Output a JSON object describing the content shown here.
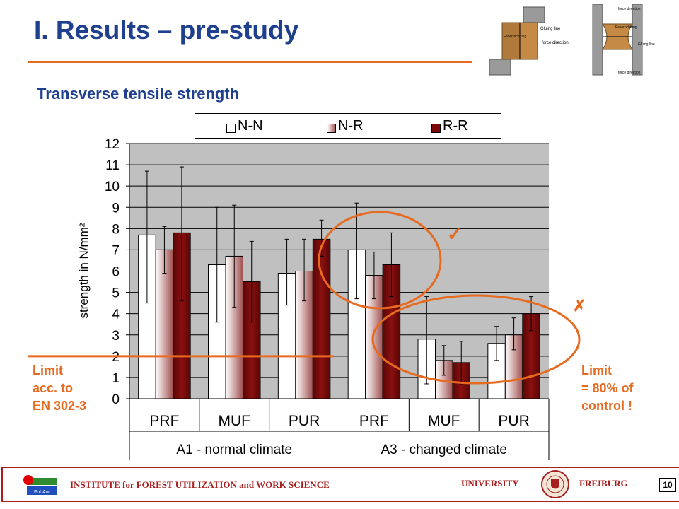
{
  "header": {
    "title": "I. Results – pre-study",
    "subtitle": "Transverse tensile strength"
  },
  "diagram_labels": {
    "left": [
      "Faser-richtung",
      "Gluing line",
      "force direction"
    ],
    "right": [
      "force direction",
      "Faserrichtung",
      "Gluing line",
      "force direction"
    ]
  },
  "chart_data": {
    "type": "bar",
    "ylabel": "strength in N/mm²",
    "ylim": [
      0,
      12
    ],
    "yticks": [
      "0",
      "1",
      "2",
      "3",
      "4",
      "5",
      "6",
      "7",
      "8",
      "9",
      "10",
      "11",
      "12"
    ],
    "categories": [
      "PRF",
      "MUF",
      "PUR",
      "PRF",
      "MUF",
      "PUR"
    ],
    "groups": [
      "A1 -  normal climate",
      "A3 -  changed climate"
    ],
    "series": [
      {
        "name": "N-N",
        "values": [
          7.7,
          6.3,
          5.9,
          7.0,
          2.8,
          2.6
        ],
        "err_high": [
          10.7,
          9.0,
          7.5,
          9.2,
          4.8,
          3.4
        ],
        "err_low": [
          4.5,
          3.6,
          4.4,
          4.7,
          0.7,
          1.8
        ]
      },
      {
        "name": "N-R",
        "values": [
          7.0,
          6.7,
          6.0,
          5.8,
          1.8,
          3.0
        ],
        "err_high": [
          8.1,
          9.1,
          7.5,
          6.9,
          2.5,
          3.8
        ],
        "err_low": [
          5.9,
          4.3,
          4.6,
          4.7,
          1.1,
          2.3
        ]
      },
      {
        "name": "R-R",
        "values": [
          7.8,
          5.5,
          7.5,
          6.3,
          1.7,
          4.0
        ],
        "err_high": [
          10.9,
          7.4,
          8.4,
          7.8,
          2.7,
          4.8
        ],
        "err_low": [
          4.6,
          3.6,
          6.7,
          4.8,
          0.7,
          3.2
        ]
      }
    ],
    "colors": {
      "N-N": "#ffffff",
      "N-R": "#a05050",
      "R-R": "#7a0a0a",
      "plot_bg": "#c0c0c0",
      "limit": "#e66a1f"
    },
    "limit_value": 2.0,
    "grid": true,
    "legend_position": "top"
  },
  "annotations": {
    "limit_left": [
      "Limit",
      "acc. to",
      "EN 302-3"
    ],
    "limit_right": [
      "Limit",
      "= 80% of",
      "control !"
    ],
    "check_mark": "✓",
    "cross_mark": "✗"
  },
  "footer": {
    "institute": "INSTITUTE for FOREST UTILIZATION and WORK SCIENCE",
    "university": "UNIVERSITY",
    "city": "FREIBURG",
    "page": "10",
    "logo_text": "FobAwi"
  }
}
